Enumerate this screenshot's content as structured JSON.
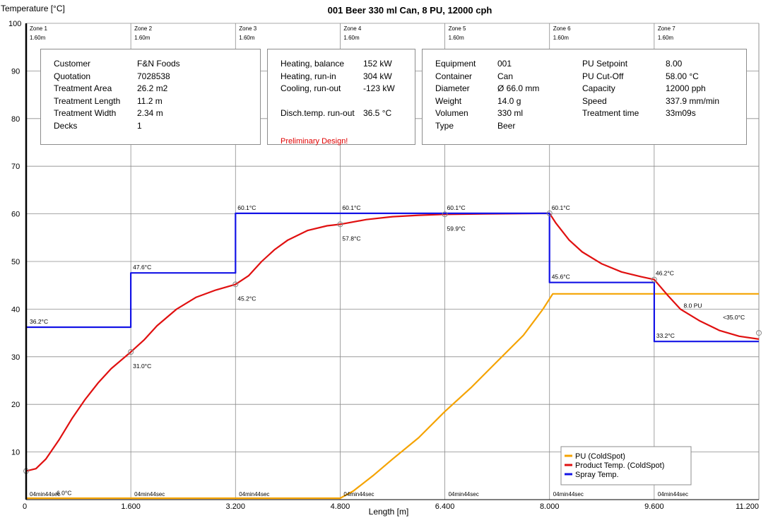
{
  "chart_data": {
    "type": "line",
    "title": "001 Beer 330 ml Can, 8 PU, 12000 cph",
    "xlabel": "Length [m]",
    "ylabel": "Temperature [°C]",
    "xlim": [
      0,
      11.2
    ],
    "ylim": [
      0,
      100
    ],
    "grid": true,
    "x_ticks": [
      "0",
      "1.600",
      "3.200",
      "4.800",
      "6.400",
      "8.000",
      "9.600",
      "11.200"
    ],
    "y_ticks": [
      "10",
      "20",
      "30",
      "40",
      "50",
      "60",
      "70",
      "80",
      "90",
      "100"
    ],
    "zones": [
      {
        "name": "Zone 1",
        "length": "1.60m",
        "time": "04min44sec"
      },
      {
        "name": "Zone 2",
        "length": "1.60m",
        "time": "04min44sec"
      },
      {
        "name": "Zone 3",
        "length": "1.60m",
        "time": "04min44sec"
      },
      {
        "name": "Zone 4",
        "length": "1.60m",
        "time": "04min44sec"
      },
      {
        "name": "Zone 5",
        "length": "1.60m",
        "time": "04min44sec"
      },
      {
        "name": "Zone 6",
        "length": "1.60m",
        "time": "04min44sec"
      },
      {
        "name": "Zone 7",
        "length": "1.60m",
        "time": "04min44sec"
      }
    ],
    "legend_position": "bottom-right",
    "series": [
      {
        "name": "PU (ColdSpot)",
        "color": "#f5a300",
        "points": [
          [
            0,
            0.3
          ],
          [
            4.8,
            0.3
          ],
          [
            5.0,
            1.8
          ],
          [
            5.3,
            5
          ],
          [
            5.6,
            8.5
          ],
          [
            6.0,
            13
          ],
          [
            6.4,
            18.5
          ],
          [
            6.8,
            23.5
          ],
          [
            7.2,
            29
          ],
          [
            7.6,
            34.5
          ],
          [
            7.9,
            40
          ],
          [
            8.05,
            43.2
          ],
          [
            11.2,
            43.2
          ]
        ]
      },
      {
        "name": "Product Temp. (ColdSpot)",
        "color": "#e01010",
        "points": [
          [
            0,
            6.0
          ],
          [
            0.15,
            6.5
          ],
          [
            0.3,
            8.5
          ],
          [
            0.5,
            12.5
          ],
          [
            0.7,
            17
          ],
          [
            0.9,
            21
          ],
          [
            1.1,
            24.5
          ],
          [
            1.3,
            27.5
          ],
          [
            1.6,
            31.0
          ],
          [
            1.8,
            33.5
          ],
          [
            2.0,
            36.5
          ],
          [
            2.3,
            40
          ],
          [
            2.6,
            42.5
          ],
          [
            2.9,
            44
          ],
          [
            3.2,
            45.2
          ],
          [
            3.4,
            47
          ],
          [
            3.6,
            50
          ],
          [
            3.8,
            52.5
          ],
          [
            4.0,
            54.5
          ],
          [
            4.3,
            56.5
          ],
          [
            4.6,
            57.5
          ],
          [
            4.8,
            57.8
          ],
          [
            5.2,
            58.8
          ],
          [
            5.6,
            59.4
          ],
          [
            6.0,
            59.7
          ],
          [
            6.4,
            59.9
          ],
          [
            7.0,
            60.0
          ],
          [
            8.0,
            60.1
          ],
          [
            8.1,
            58
          ],
          [
            8.3,
            54.5
          ],
          [
            8.5,
            52
          ],
          [
            8.8,
            49.5
          ],
          [
            9.1,
            47.8
          ],
          [
            9.4,
            46.8
          ],
          [
            9.6,
            46.2
          ],
          [
            9.8,
            43
          ],
          [
            10.0,
            40
          ],
          [
            10.3,
            37.5
          ],
          [
            10.6,
            35.5
          ],
          [
            10.9,
            34.3
          ],
          [
            11.2,
            33.7
          ]
        ]
      },
      {
        "name": "Spray Temp.",
        "color": "#1414e6",
        "points": [
          [
            0,
            36.2
          ],
          [
            1.6,
            36.2
          ],
          [
            1.6,
            47.6
          ],
          [
            3.2,
            47.6
          ],
          [
            3.2,
            60.1
          ],
          [
            8.0,
            60.1
          ],
          [
            8.0,
            45.6
          ],
          [
            9.6,
            45.6
          ],
          [
            9.6,
            33.2
          ],
          [
            11.2,
            33.2
          ]
        ]
      }
    ],
    "spray_labels": [
      {
        "x": 0,
        "y": 36.2,
        "text": "36.2°C"
      },
      {
        "x": 1.6,
        "y": 47.6,
        "text": "47.6°C"
      },
      {
        "x": 3.2,
        "y": 60.1,
        "text": "60.1°C"
      },
      {
        "x": 4.8,
        "y": 60.1,
        "text": "60.1°C"
      },
      {
        "x": 6.4,
        "y": 60.1,
        "text": "60.1°C"
      },
      {
        "x": 8.0,
        "y": 60.1,
        "text": "60.1°C"
      },
      {
        "x": 8.0,
        "y": 45.6,
        "text": "45.6°C"
      },
      {
        "x": 9.6,
        "y": 33.2,
        "text": "33.2°C"
      }
    ],
    "product_markers": [
      {
        "x": 0,
        "y": 6.0,
        "text": "6.0°C"
      },
      {
        "x": 1.6,
        "y": 31.0,
        "text": "31.0°C"
      },
      {
        "x": 3.2,
        "y": 45.2,
        "text": "45.2°C"
      },
      {
        "x": 4.8,
        "y": 57.8,
        "text": "57.8°C"
      },
      {
        "x": 6.4,
        "y": 59.9,
        "text": "59.9°C"
      },
      {
        "x": 8.0,
        "y": 60.1,
        "text": ""
      },
      {
        "x": 9.6,
        "y": 46.2,
        "text": "46.2°C"
      },
      {
        "x": 11.2,
        "y": 35.0,
        "text": ""
      }
    ],
    "annotations": [
      {
        "x": 10.05,
        "y": 40.3,
        "text": "8.0 PU"
      },
      {
        "x": 10.65,
        "y": 37.8,
        "text": "<35.0°C"
      }
    ]
  },
  "info_boxes": {
    "customer": [
      {
        "label": "Customer",
        "value": "F&N Foods"
      },
      {
        "label": "Quotation",
        "value": "7028538"
      },
      {
        "label": "Treatment Area",
        "value": "26.2 m2"
      },
      {
        "label": "Treatment Length",
        "value": "11.2 m"
      },
      {
        "label": "Treatment Width",
        "value": "2.34 m"
      },
      {
        "label": "Decks",
        "value": "1"
      }
    ],
    "energy": [
      {
        "label": "Heating, balance",
        "value": "152 kW"
      },
      {
        "label": "Heating, run-in",
        "value": "304 kW"
      },
      {
        "label": "Cooling, run-out",
        "value": "-123 kW"
      },
      {
        "label": "",
        "value": ""
      },
      {
        "label": "Disch.temp. run-out",
        "value": "36.5 °C"
      }
    ],
    "energy_note": "Preliminary Design!",
    "equipment": [
      {
        "label": "Equipment",
        "value": "001"
      },
      {
        "label": "Container",
        "value": "Can"
      },
      {
        "label": "Diameter",
        "value": "Ø 66.0 mm"
      },
      {
        "label": "Weight",
        "value": "14.0 g"
      },
      {
        "label": "Volumen",
        "value": "330 ml"
      },
      {
        "label": "Type",
        "value": "Beer"
      }
    ],
    "pu": [
      {
        "label": "PU Setpoint",
        "value": "8.00"
      },
      {
        "label": "PU Cut-Off",
        "value": "58.00 °C"
      },
      {
        "label": "Capacity",
        "value": "12000 pph"
      },
      {
        "label": "Speed",
        "value": "337.9 mm/min"
      },
      {
        "label": "Treatment time",
        "value": "33m09s"
      }
    ]
  }
}
